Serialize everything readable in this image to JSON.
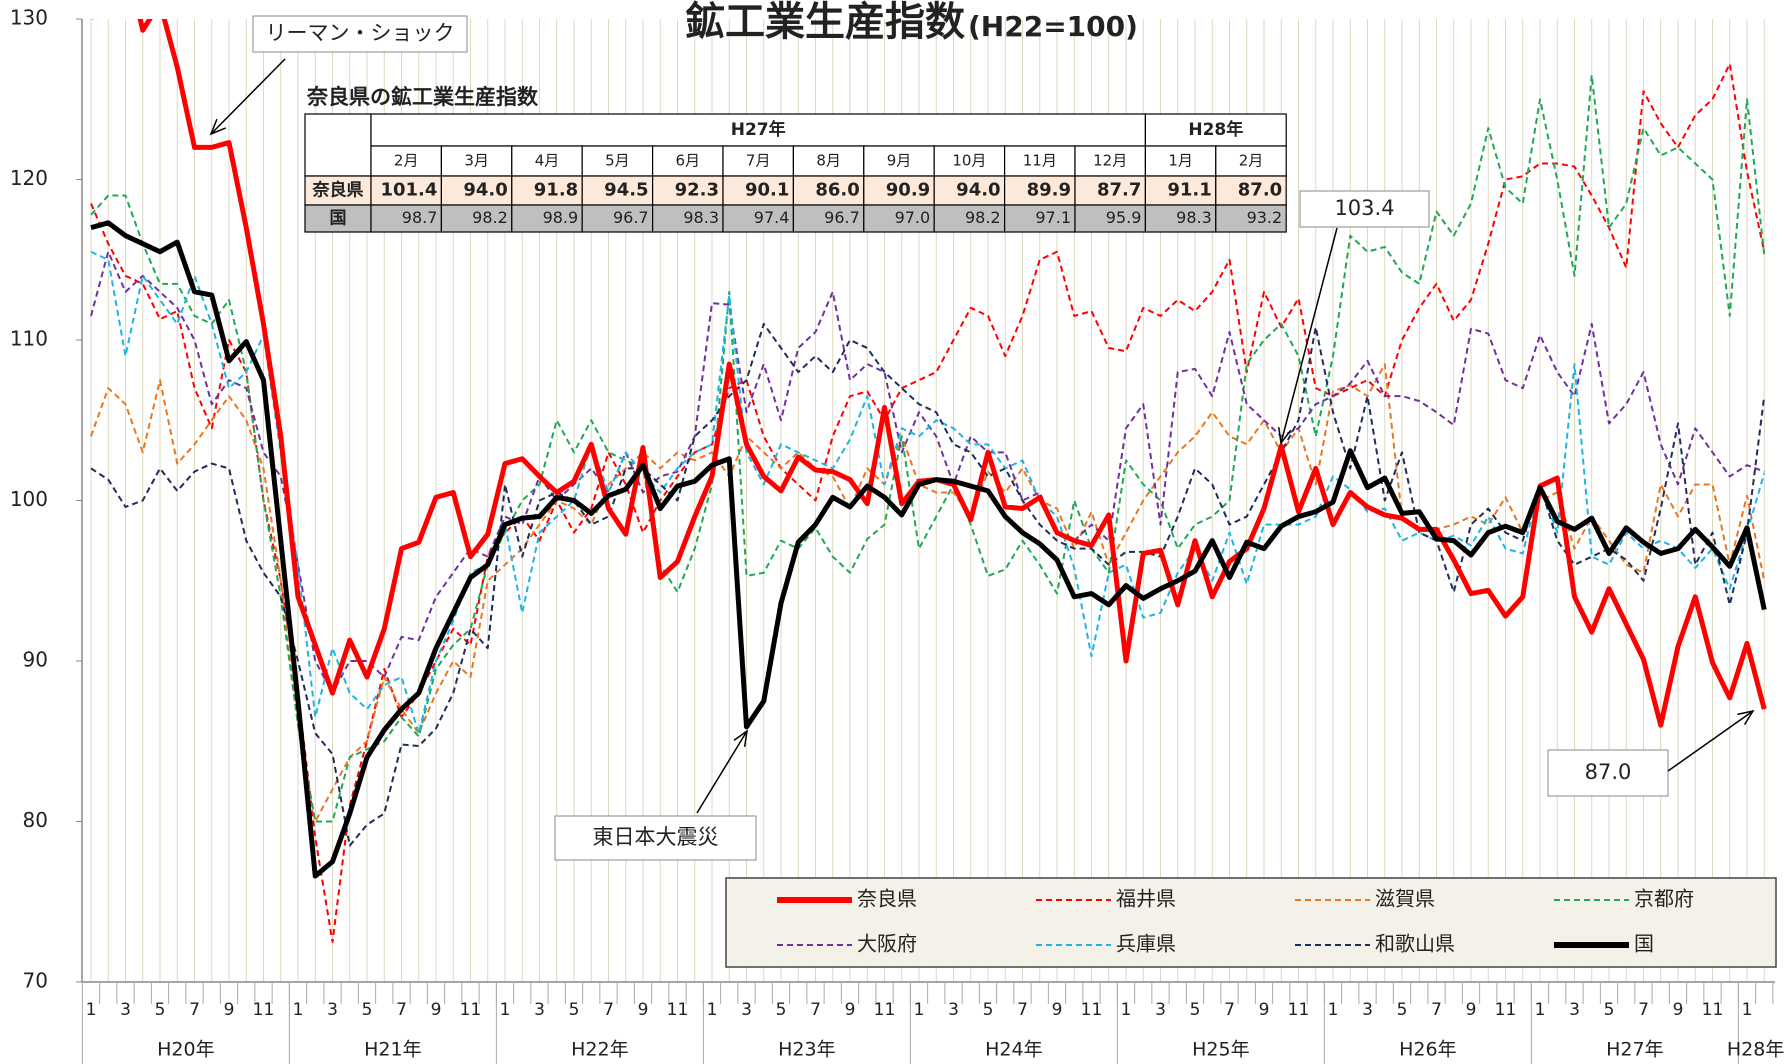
{
  "chart_data": {
    "type": "line",
    "title": "鉱工業生産指数",
    "subtitle": "(H22=100)",
    "categories": [
      "1",
      null,
      "3",
      null,
      "5",
      null,
      "7",
      null,
      "9",
      null,
      "11",
      null,
      "1",
      null,
      "3",
      null,
      "5",
      null,
      "7",
      null,
      "9",
      null,
      "11",
      null,
      "1",
      null,
      "3",
      null,
      "5",
      null,
      "7",
      null,
      "9",
      null,
      "11",
      null,
      "1",
      null,
      "3",
      null,
      "5",
      null,
      "7",
      null,
      "9",
      null,
      "11",
      null,
      "1",
      null,
      "3",
      null,
      "5",
      null,
      "7",
      null,
      "9",
      null,
      "11",
      null,
      "1",
      null,
      "3",
      null,
      "5",
      null,
      "7",
      null,
      "9",
      null,
      "11",
      null,
      "1",
      null,
      "3",
      null,
      "5",
      null,
      "7",
      null,
      "9",
      null,
      "11",
      null,
      "1",
      null,
      "3",
      null,
      "5",
      null,
      "7",
      null,
      "9",
      null,
      "11",
      null,
      "1",
      null
    ],
    "x_groups": [
      "H20年",
      "H21年",
      "H22年",
      "H23年",
      "H24年",
      "H25年",
      "H26年",
      "H27年",
      "H28年"
    ],
    "ylim": [
      70,
      130
    ],
    "yticks": [
      70,
      80,
      90,
      100,
      110,
      120,
      130
    ],
    "grid": true,
    "series": [
      {
        "name": "福井県",
        "color": "#ff0000",
        "style": "dashed",
        "values": [
          118.5,
          116,
          114,
          113.5,
          111.3,
          111.8,
          107,
          104.5,
          110,
          108,
          100,
          95,
          88,
          79,
          72.5,
          81,
          85,
          89.5,
          86.5,
          88,
          90,
          92,
          91,
          96.5,
          98,
          99,
          97.5,
          100,
          98,
          99.5,
          103,
          101,
          98,
          100,
          101.5,
          103,
          103.5,
          107,
          107.5,
          104,
          102,
          101,
          100,
          104,
          106.5,
          106.8,
          105,
          107,
          107.5,
          108,
          110,
          112,
          111.5,
          109,
          111.5,
          115,
          115.5,
          111.5,
          111.8,
          109.5,
          109.3,
          112,
          111.5,
          112.5,
          111.8,
          113,
          115,
          108,
          113,
          110.8,
          112.6,
          107,
          106.5,
          107,
          107.5,
          106.5,
          110,
          112,
          113.5,
          111.2,
          112.5,
          116,
          120,
          120.2,
          121,
          121,
          120.8,
          119,
          117,
          114.5,
          125.5,
          123.5,
          122,
          124,
          125,
          127.2,
          120.5,
          115.5
        ]
      },
      {
        "name": "滋賀県",
        "color": "#e87722",
        "style": "dashed",
        "values": [
          104,
          107,
          106,
          103,
          107.5,
          102.3,
          103.5,
          105,
          106.5,
          105,
          102,
          95,
          86,
          80,
          82,
          84,
          85,
          89,
          87,
          85.5,
          88,
          90,
          89,
          95,
          96,
          97,
          98.5,
          100,
          99.5,
          98.5,
          101,
          102,
          103,
          102,
          103,
          102.5,
          103,
          101.5,
          104,
          103,
          102,
          103,
          102,
          101.5,
          99.5,
          102,
          101,
          104,
          101,
          100.5,
          100.5,
          99,
          101.8,
          100.5,
          102,
          100,
          99.5,
          97,
          99.3,
          96,
          98,
          100,
          101.5,
          103,
          104,
          105.5,
          104,
          103.5,
          105,
          103,
          104.5,
          101,
          106.8,
          107.2,
          106.5,
          108.5,
          99,
          98.3,
          98.2,
          98.5,
          99,
          98.5,
          100.2,
          98,
          100,
          100.5,
          97,
          99,
          97.5,
          96,
          95.5,
          101,
          99,
          101,
          101,
          96,
          100.3,
          95
        ]
      },
      {
        "name": "京都府",
        "color": "#22a855",
        "style": "dashed",
        "values": [
          117.8,
          119,
          119,
          116,
          113.5,
          113.5,
          111.5,
          111,
          112.5,
          108,
          100,
          94,
          86,
          80,
          80,
          84,
          84.5,
          85,
          86.5,
          85.3,
          89.5,
          91,
          92,
          96,
          98,
          100,
          101,
          105,
          103,
          105,
          103,
          102.5,
          102,
          96,
          94.3,
          97,
          101,
          113,
          95.3,
          95.5,
          97.5,
          97,
          98.3,
          96.5,
          95.5,
          97.6,
          98.5,
          104,
          97,
          99,
          101,
          98.5,
          95.3,
          95.7,
          97.5,
          96,
          94.2,
          100,
          97,
          95.5,
          102.5,
          101,
          100,
          97,
          98.5,
          99,
          100,
          108.5,
          110,
          111,
          109,
          104,
          109,
          116.5,
          115.5,
          115.8,
          114.2,
          113.5,
          118,
          116.5,
          118.5,
          123.2,
          119.5,
          118.5,
          125,
          120,
          114,
          126.5,
          117,
          118.5,
          123.2,
          121.5,
          122,
          121,
          120,
          111.5,
          125,
          115.3
        ]
      },
      {
        "name": "大阪府",
        "color": "#7030a0",
        "style": "dashed",
        "values": [
          111.5,
          115.5,
          113,
          114,
          113,
          112,
          110,
          106,
          107.5,
          107,
          103,
          101.5,
          96,
          90,
          88,
          90,
          90,
          89,
          91.5,
          91.3,
          94,
          95.5,
          97,
          96.5,
          99,
          98.5,
          101.5,
          100,
          101,
          102,
          100.5,
          103,
          100.5,
          101.5,
          101.8,
          104,
          112.3,
          112.2,
          105.5,
          108.5,
          105,
          109.5,
          110.5,
          113,
          107.5,
          108.5,
          108,
          103,
          105.5,
          104,
          101,
          104,
          103,
          103,
          100,
          100.5,
          98,
          97.5,
          98.5,
          97.5,
          104.5,
          106,
          98.5,
          108,
          108.2,
          106.5,
          110.5,
          106,
          105,
          104,
          104.5,
          106,
          106.5,
          107.3,
          108.7,
          106.5,
          106.5,
          106.2,
          105.5,
          104.7,
          110.7,
          110.4,
          107.5,
          107,
          110.3,
          108,
          106.5,
          111,
          104.8,
          106,
          108,
          103.5,
          101,
          104.5,
          103,
          101.5,
          102.2,
          101.8
        ]
      },
      {
        "name": "兵庫県",
        "color": "#1eb4e6",
        "style": "dashed",
        "values": [
          115.5,
          115,
          109,
          114,
          112.5,
          111,
          114,
          111,
          107,
          108,
          110.3,
          103,
          96,
          86.5,
          90.8,
          88,
          87,
          88.5,
          89,
          85.5,
          90,
          92.5,
          95.5,
          96,
          98.5,
          93,
          98,
          99,
          100,
          103.5,
          100.5,
          103,
          101.7,
          100.5,
          102,
          103,
          103.5,
          112.8,
          103,
          101,
          103.5,
          103,
          102.5,
          102,
          103.8,
          106.5,
          101,
          104.5,
          104,
          105,
          104.5,
          103.5,
          103.5,
          102,
          102.5,
          100,
          99,
          95.8,
          90.3,
          95.5,
          96,
          92.7,
          93,
          95.5,
          97,
          95,
          98,
          94.8,
          98.5,
          98.5,
          98.5,
          99,
          101.5,
          100.7,
          99.3,
          99.5,
          97.5,
          98,
          97.5,
          97.8,
          97.2,
          99,
          97,
          96.7,
          101,
          98,
          108.5,
          96.5,
          96,
          98,
          97,
          97.5,
          97,
          95.8,
          97,
          94.5,
          98,
          101.7
        ]
      },
      {
        "name": "和歌山県",
        "color": "#1f2d5c",
        "style": "dashed",
        "values": [
          102,
          101.3,
          99.6,
          100,
          102,
          100.6,
          101.8,
          102.3,
          102,
          97.5,
          95.5,
          94,
          90,
          85.5,
          84.2,
          78.5,
          79.8,
          80.5,
          84.8,
          84.7,
          85.8,
          88,
          92,
          90.8,
          101,
          96.5,
          100,
          100.5,
          100,
          98.5,
          99,
          102,
          102,
          101,
          100,
          104,
          105,
          106.5,
          107.5,
          111,
          109.5,
          108,
          109,
          108,
          110,
          109.5,
          108,
          107,
          106,
          105.5,
          103.5,
          103,
          101.5,
          102,
          100,
          98.5,
          97.5,
          97,
          97,
          96,
          96.8,
          96.8,
          96.5,
          99,
          102,
          101,
          98.5,
          99,
          101,
          103,
          105,
          110.8,
          105.5,
          102,
          106.5,
          100,
          103,
          98,
          97.5,
          94.3,
          98.5,
          99.5,
          98,
          97.5,
          101,
          97.5,
          96,
          96.5,
          97,
          96.3,
          95,
          99.5,
          104.8,
          96,
          98,
          93.5,
          98,
          106.5
        ]
      },
      {
        "name": "奈良県",
        "color": "#ff0000",
        "style": "solid",
        "values": [
          130,
          134,
          134,
          129.3,
          131,
          127,
          122,
          122,
          122.3,
          117,
          111,
          104,
          94,
          91,
          88,
          91.3,
          89,
          92,
          97,
          97.4,
          100.2,
          100.5,
          96.5,
          97.9,
          102.3,
          102.6,
          101.5,
          100.5,
          101.2,
          103.5,
          99.5,
          97.9,
          103.3,
          95.2,
          96.2,
          99,
          101.5,
          108.5,
          103.5,
          101.5,
          100.6,
          102.7,
          101.9,
          101.8,
          101.3,
          99.8,
          105.8,
          99.8,
          101.2,
          101.3,
          101.0,
          98.8,
          103.0,
          99.6,
          99.5,
          100.2,
          98,
          97.5,
          97.2,
          99.1,
          90.0,
          96.7,
          96.9,
          93.5,
          97.5,
          94,
          96.2,
          97,
          99.5,
          103.4,
          99.3,
          102,
          98.5,
          100.5,
          99.6,
          99.1,
          98.9,
          98.2,
          98.2,
          96.3,
          94.2,
          94.4,
          92.8,
          94.0,
          100.9,
          101.4,
          94.0,
          91.8,
          94.5,
          92.3,
          90.1,
          86.0,
          90.9,
          94.0,
          89.9,
          87.7,
          91.1,
          87.0
        ]
      },
      {
        "name": "国",
        "color": "#000000",
        "style": "solid",
        "values": [
          117,
          117.3,
          116.5,
          116,
          115.5,
          116.1,
          113,
          112.8,
          108.7,
          109.9,
          107.5,
          97.5,
          87.5,
          76.6,
          77.5,
          80.5,
          84,
          85.7,
          87,
          88,
          90.8,
          93,
          95.2,
          96,
          98.5,
          98.9,
          99,
          100.2,
          100,
          99.2,
          100.3,
          100.7,
          102.2,
          99.5,
          100.9,
          101.2,
          102.2,
          102.6,
          85.9,
          87.5,
          93.6,
          97.4,
          98.5,
          100.2,
          99.6,
          100.9,
          100.2,
          99.1,
          101,
          101.3,
          101.2,
          100.9,
          100.6,
          99,
          98,
          97.3,
          96.3,
          94,
          94.2,
          93.5,
          94.7,
          93.9,
          94.5,
          95,
          95.6,
          97.5,
          95.2,
          97.4,
          97,
          98.4,
          99,
          99.3,
          99.9,
          103.1,
          100.8,
          101.4,
          99.2,
          99.3,
          97.6,
          97.5,
          96.6,
          98,
          98.4,
          98,
          100.8,
          98.7,
          98.2,
          98.9,
          96.7,
          98.3,
          97.4,
          96.7,
          97.0,
          98.2,
          97.1,
          95.9,
          98.3,
          93.2
        ]
      }
    ],
    "annotations": [
      "リーマン・ショック",
      "東日本大震災",
      "103.4",
      "87.0"
    ],
    "table": {
      "title": "奈良県の鉱工業生産指数",
      "years": [
        {
          "label": "H27年",
          "months": [
            "2月",
            "3月",
            "4月",
            "5月",
            "6月",
            "7月",
            "8月",
            "9月",
            "10月",
            "11月",
            "12月"
          ]
        },
        {
          "label": "H28年",
          "months": [
            "1月",
            "2月"
          ]
        }
      ],
      "rows": [
        {
          "name": "奈良県",
          "cells": [
            "101.4",
            "94.0",
            "91.8",
            "94.5",
            "92.3",
            "90.1",
            "86.0",
            "90.9",
            "94.0",
            "89.9",
            "87.7",
            "91.1",
            "87.0"
          ]
        },
        {
          "name": "国",
          "cells": [
            "98.7",
            "98.2",
            "98.9",
            "96.7",
            "98.3",
            "97.4",
            "96.7",
            "97.0",
            "98.2",
            "97.1",
            "95.9",
            "98.3",
            "93.2"
          ]
        }
      ]
    }
  }
}
